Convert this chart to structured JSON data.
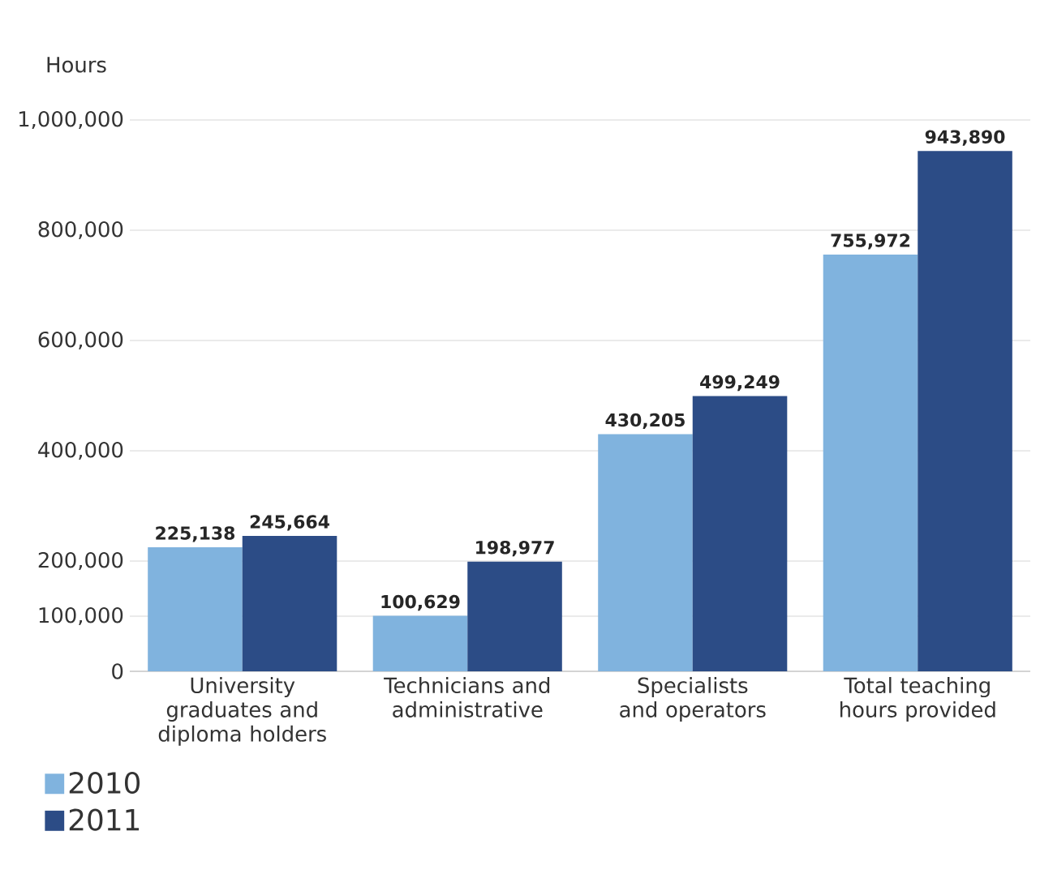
{
  "chart_data": {
    "type": "bar",
    "ylabel": "Hours",
    "categories": [
      "University graduates and diploma holders",
      "Technicians and administrative",
      "Specialists and operators",
      "Total teaching hours provided"
    ],
    "series": [
      {
        "name": "2010",
        "color": "#80b3de",
        "values": [
          225138,
          100629,
          430205,
          755972
        ],
        "value_labels": [
          "225,138",
          "100,629",
          "430,205",
          "755,972"
        ]
      },
      {
        "name": "2011",
        "color": "#2c4c86",
        "values": [
          245664,
          198977,
          499249,
          943890
        ],
        "value_labels": [
          "245,664",
          "198,977",
          "499,249",
          "943,890"
        ]
      }
    ],
    "ylim": [
      0,
      1000000
    ],
    "yticks": [
      {
        "value": 0,
        "label": "0"
      },
      {
        "value": 100000,
        "label": "100,000"
      },
      {
        "value": 200000,
        "label": "200,000"
      },
      {
        "value": 400000,
        "label": "400,000"
      },
      {
        "value": 600000,
        "label": "600,000"
      },
      {
        "value": 800000,
        "label": "800,000"
      },
      {
        "value": 1000000,
        "label": "1,000,000"
      }
    ],
    "grid": "y",
    "legend": "bottom left"
  }
}
